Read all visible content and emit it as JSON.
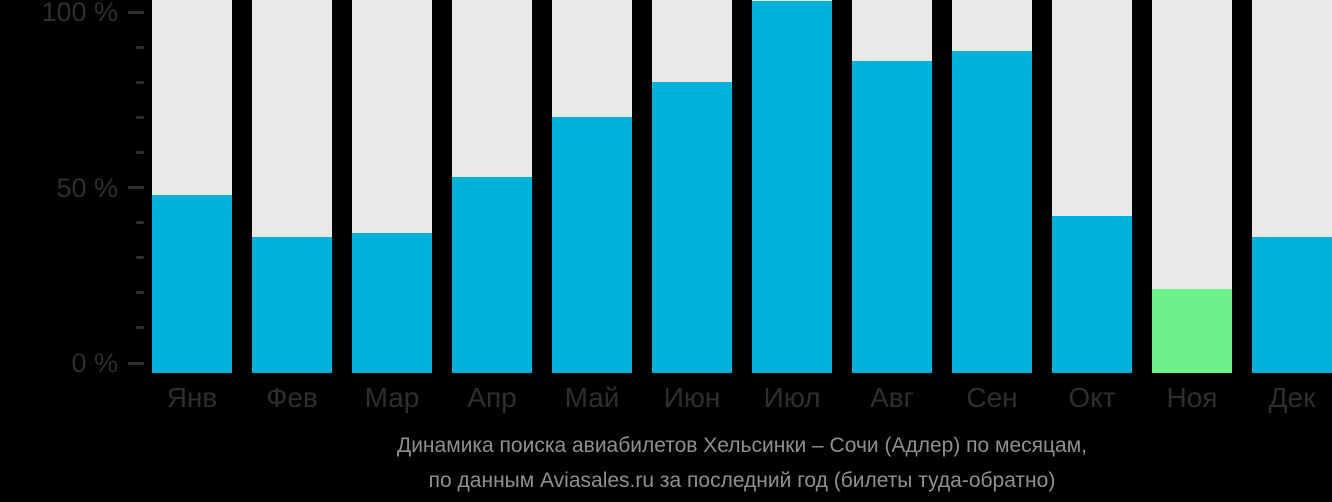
{
  "chart_data": {
    "type": "bar",
    "title_line1": "Динамика поиска авиабилетов Хельсинки – Сочи (Адлер) по месяцам,",
    "title_line2": "по данным Aviasales.ru за последний год (билеты туда-обратно)",
    "categories": [
      "Янв",
      "Фев",
      "Мар",
      "Апр",
      "Май",
      "Июн",
      "Июл",
      "Авг",
      "Сен",
      "Окт",
      "Ноя",
      "Дек"
    ],
    "values": [
      48,
      36,
      37,
      53,
      70,
      80,
      103,
      86,
      89,
      42,
      21,
      36
    ],
    "highlight_index": 10,
    "xlabel": "",
    "ylabel": "",
    "yaxis": {
      "min": 0,
      "max": 100,
      "minor_tick_step": 10,
      "labeled_ticks": [
        {
          "value": 100,
          "label": "100 %"
        },
        {
          "value": 50,
          "label": "50 %"
        },
        {
          "value": 0,
          "label": "0 %"
        }
      ]
    },
    "legend": null,
    "grid": false,
    "colors": {
      "bar": "#00B1DC",
      "highlight": "#6CF08A",
      "track": "#E9E9E9",
      "background": "#000000",
      "axis_text": "#2E2E2E",
      "title_text": "#8F8F8F"
    }
  }
}
